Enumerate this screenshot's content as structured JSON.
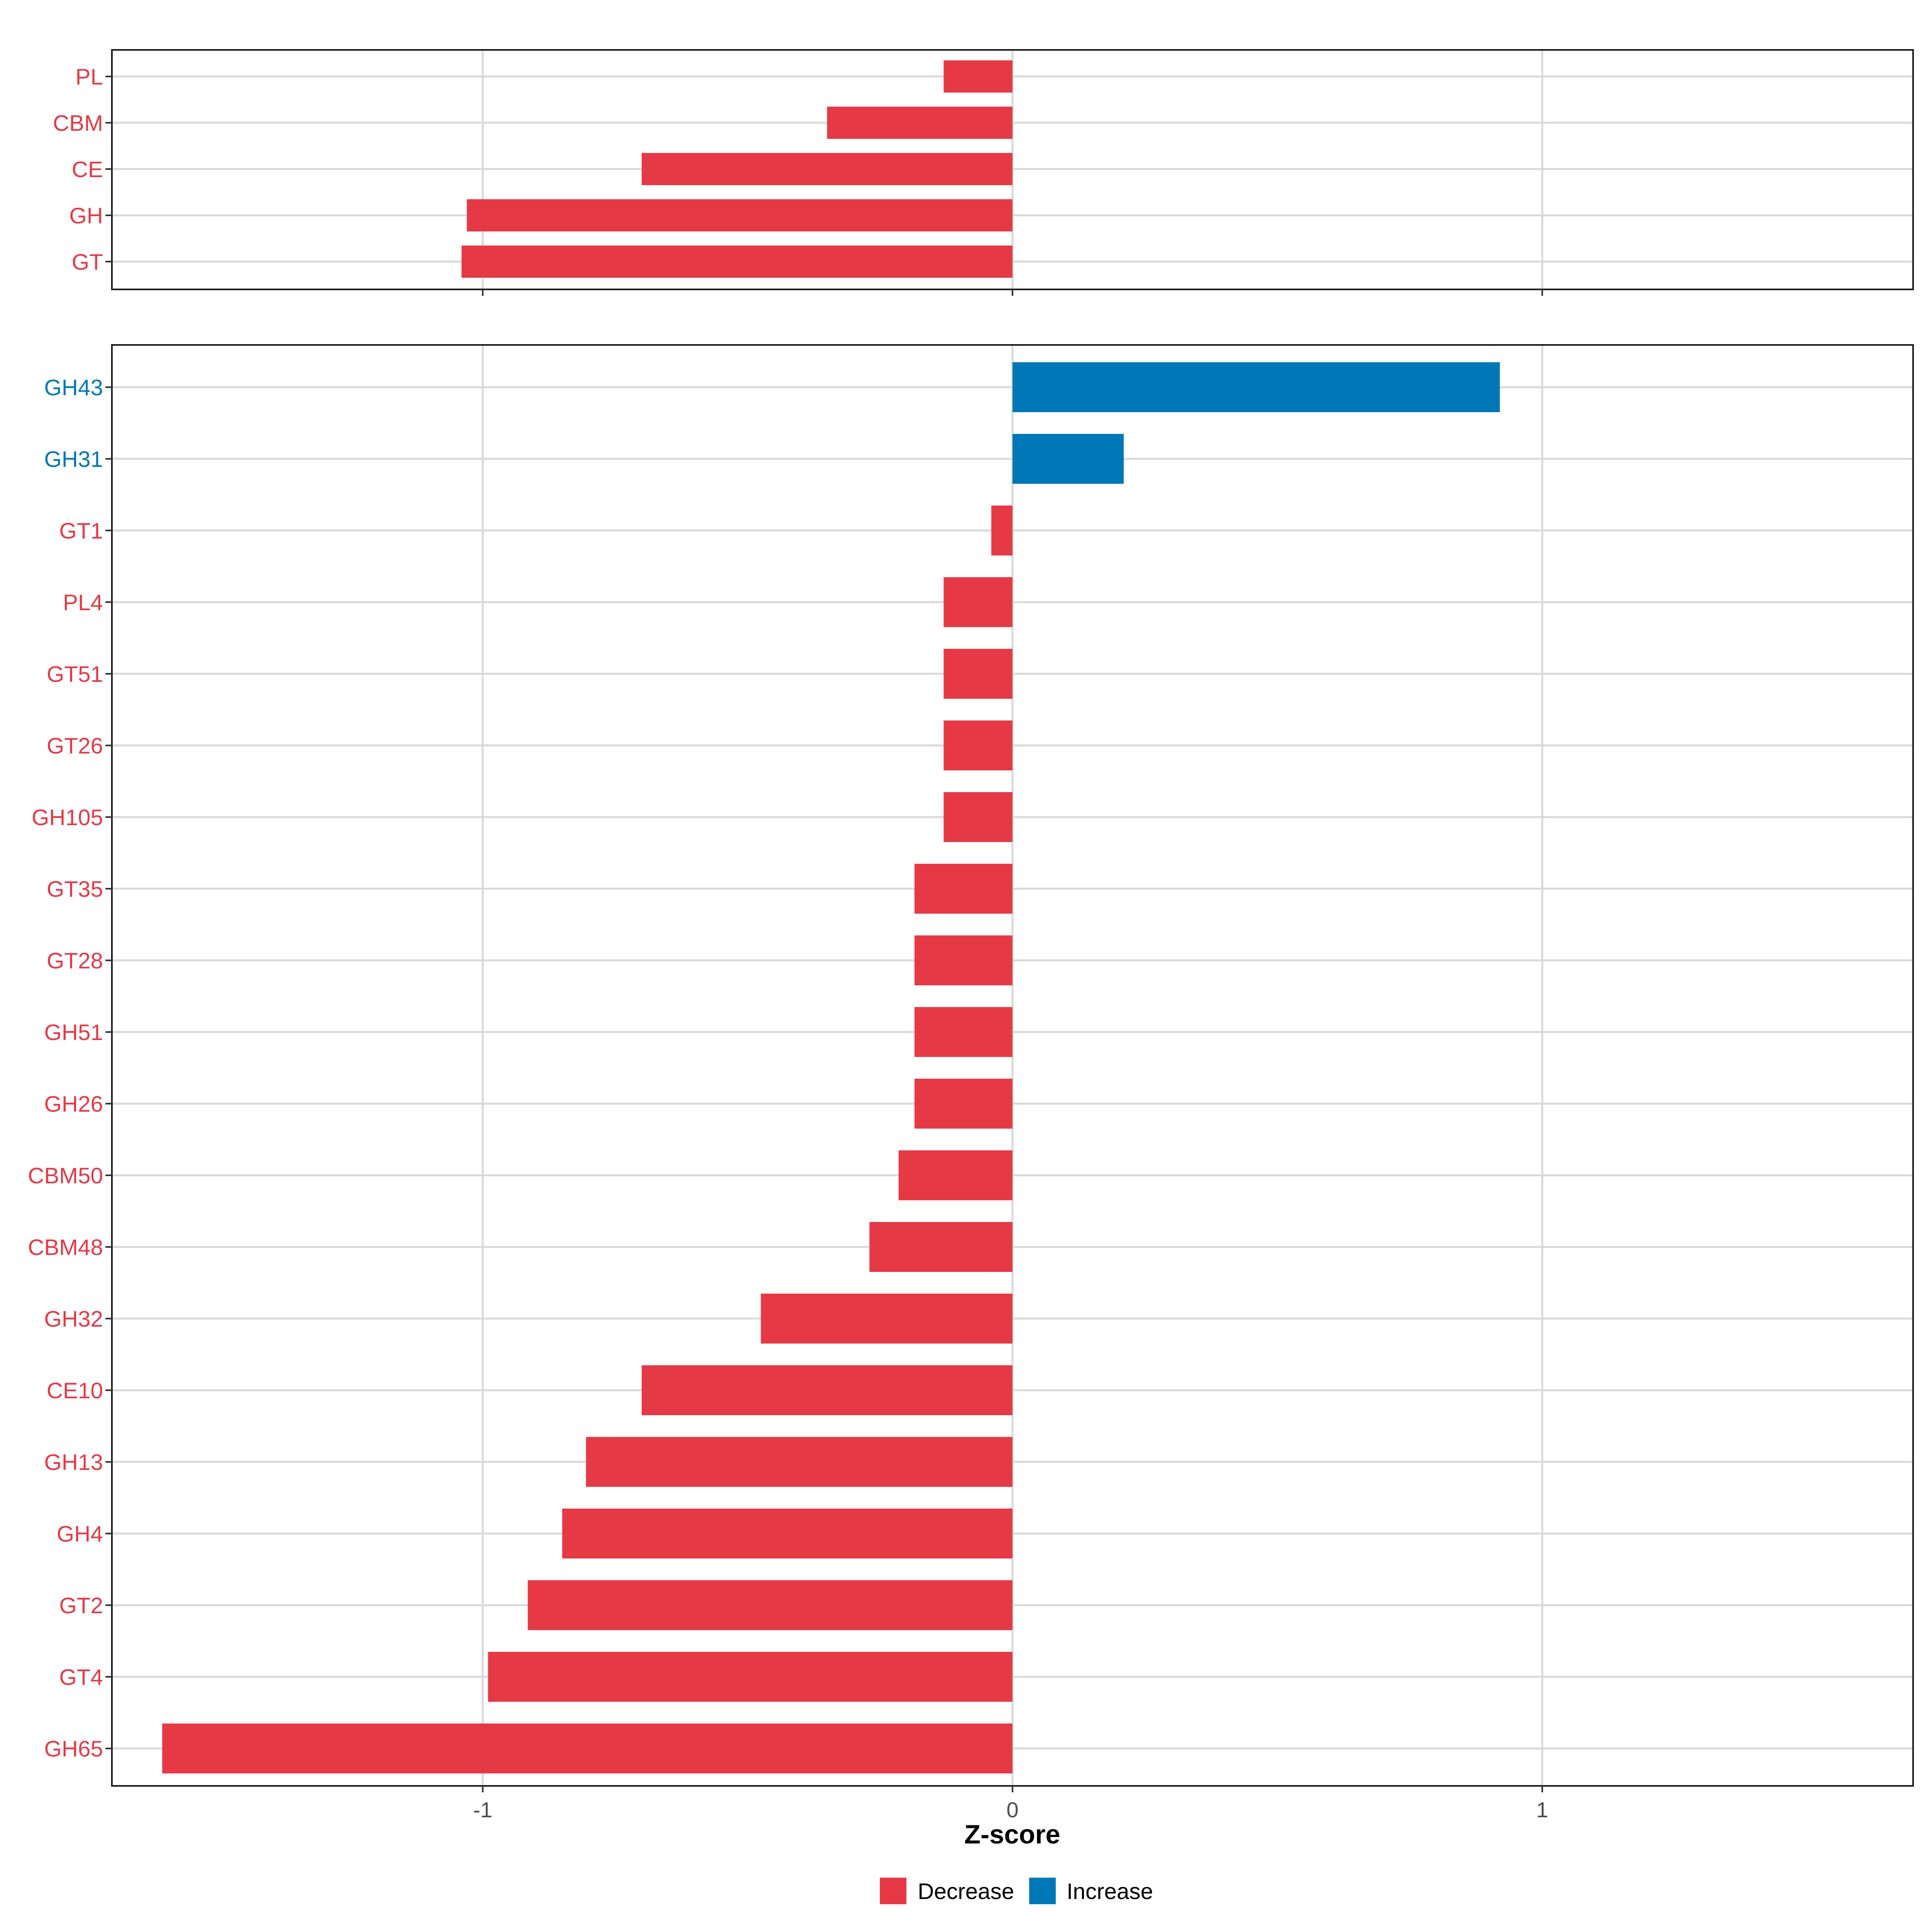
{
  "chart_data": [
    {
      "type": "bar",
      "orientation": "horizontal",
      "panel": "top",
      "categories": [
        "PL",
        "CBM",
        "CE",
        "GH",
        "GT"
      ],
      "values": [
        -0.13,
        -0.35,
        -0.7,
        -1.03,
        -1.04
      ],
      "direction": [
        "Decrease",
        "Decrease",
        "Decrease",
        "Decrease",
        "Decrease"
      ],
      "xlim": [
        -1.7,
        1.7
      ],
      "xticks": [
        -1,
        0,
        1
      ],
      "grid": true
    },
    {
      "type": "bar",
      "orientation": "horizontal",
      "panel": "bottom",
      "categories": [
        "GH43",
        "GH31",
        "GT1",
        "PL4",
        "GT51",
        "GT26",
        "GH105",
        "GT35",
        "GT28",
        "GH51",
        "GH26",
        "CBM50",
        "CBM48",
        "GH32",
        "CE10",
        "GH13",
        "GH4",
        "GT2",
        "GT4",
        "GH65"
      ],
      "values": [
        0.92,
        0.21,
        -0.04,
        -0.13,
        -0.13,
        -0.13,
        -0.13,
        -0.185,
        -0.185,
        -0.185,
        -0.185,
        -0.215,
        -0.27,
        -0.475,
        -0.7,
        -0.805,
        -0.85,
        -0.915,
        -0.99,
        -1.605
      ],
      "direction": [
        "Increase",
        "Increase",
        "Decrease",
        "Decrease",
        "Decrease",
        "Decrease",
        "Decrease",
        "Decrease",
        "Decrease",
        "Decrease",
        "Decrease",
        "Decrease",
        "Decrease",
        "Decrease",
        "Decrease",
        "Decrease",
        "Decrease",
        "Decrease",
        "Decrease",
        "Decrease"
      ],
      "xlim": [
        -1.7,
        1.7
      ],
      "xticks": [
        -1,
        0,
        1
      ],
      "xtick_labels": [
        "-1",
        "0",
        "1"
      ],
      "xlabel": "Z-score",
      "grid": true
    }
  ],
  "legend": {
    "position": "bottom",
    "items": [
      {
        "label": "Decrease",
        "color": "#e63946"
      },
      {
        "label": "Increase",
        "color": "#0077b6"
      }
    ]
  },
  "colors": {
    "Decrease": "#e63946",
    "Increase": "#0077b6"
  }
}
